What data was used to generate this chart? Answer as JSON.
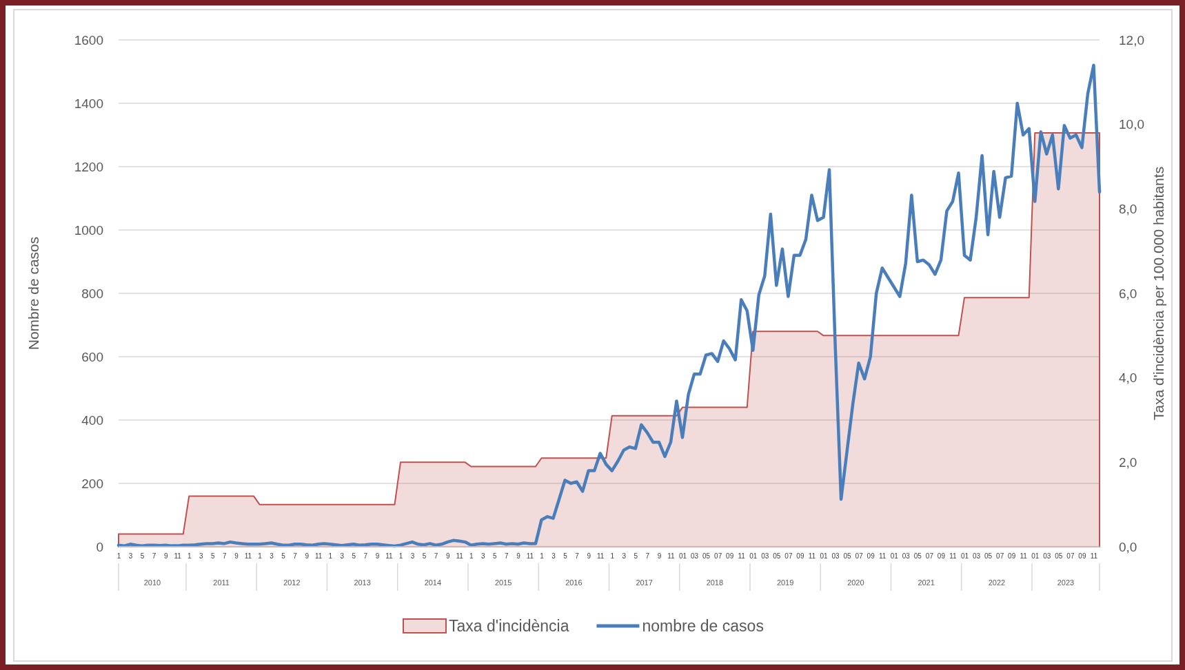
{
  "chart_data": {
    "type": "line",
    "xlabel": null,
    "ylabel": "Nombre de casos",
    "y2label": "Taxa d'incidència per 100.000 habitants",
    "categories": [
      "1",
      null,
      "3",
      null,
      "5",
      null,
      "7",
      null,
      "9",
      null,
      "11",
      null,
      "1",
      null,
      "3",
      null,
      "5",
      null,
      "7",
      null,
      "9",
      null,
      "11",
      null,
      "1",
      null,
      "3",
      null,
      "5",
      null,
      "7",
      null,
      "9",
      null,
      "11",
      null,
      "1",
      null,
      "3",
      null,
      "5",
      null,
      "7",
      null,
      "9",
      null,
      "11",
      null,
      "1",
      null,
      "3",
      null,
      "5",
      null,
      "7",
      null,
      "9",
      null,
      "11",
      null,
      "1",
      null,
      "3",
      null,
      "5",
      null,
      "7",
      null,
      "9",
      null,
      "11",
      null,
      "1",
      null,
      "3",
      null,
      "5",
      null,
      "7",
      null,
      "9",
      null,
      "11",
      null,
      "1",
      null,
      "3",
      null,
      "5",
      null,
      "7",
      null,
      "9",
      null,
      "11",
      null,
      "01",
      null,
      "03",
      null,
      "05",
      null,
      "07",
      null,
      "09",
      null,
      "11",
      null,
      "01",
      null,
      "03",
      null,
      "05",
      null,
      "07",
      null,
      "09",
      null,
      "11",
      null,
      "01",
      null,
      "03",
      null,
      "05",
      null,
      "07",
      null,
      "09",
      null,
      "11",
      null,
      "01",
      null,
      "03",
      null,
      "05",
      null,
      "07",
      null,
      "09",
      null,
      "11",
      null,
      "01",
      null,
      "03",
      null,
      "05",
      null,
      "07",
      null,
      "09",
      null,
      "11",
      null,
      "01",
      null,
      "03",
      null,
      "05",
      null,
      "07",
      null,
      "09",
      null,
      "11",
      null
    ],
    "annotations": [
      "2010",
      "2011",
      "2012",
      "2013",
      "2014",
      "2015",
      "2016",
      "2017",
      "2018",
      "2019",
      "2020",
      "2021",
      "2022",
      "2023"
    ],
    "series": [
      {
        "name": "Taxa d'incidència",
        "type": "area",
        "axis": "y2",
        "color": "#c0504d",
        "values": [
          0.3,
          0.3,
          0.3,
          0.3,
          0.3,
          0.3,
          0.3,
          0.3,
          0.3,
          0.3,
          0.3,
          0.3,
          1.2,
          1.2,
          1.2,
          1.2,
          1.2,
          1.2,
          1.2,
          1.2,
          1.2,
          1.2,
          1.2,
          1.2,
          1.0,
          1.0,
          1.0,
          1.0,
          1.0,
          1.0,
          1.0,
          1.0,
          1.0,
          1.0,
          1.0,
          1.0,
          1.0,
          1.0,
          1.0,
          1.0,
          1.0,
          1.0,
          1.0,
          1.0,
          1.0,
          1.0,
          1.0,
          1.0,
          2.0,
          2.0,
          2.0,
          2.0,
          2.0,
          2.0,
          2.0,
          2.0,
          2.0,
          2.0,
          2.0,
          2.0,
          1.9,
          1.9,
          1.9,
          1.9,
          1.9,
          1.9,
          1.9,
          1.9,
          1.9,
          1.9,
          1.9,
          1.9,
          2.1,
          2.1,
          2.1,
          2.1,
          2.1,
          2.1,
          2.1,
          2.1,
          2.1,
          2.1,
          2.1,
          2.1,
          3.1,
          3.1,
          3.1,
          3.1,
          3.1,
          3.1,
          3.1,
          3.1,
          3.1,
          3.1,
          3.1,
          3.1,
          3.3,
          3.3,
          3.3,
          3.3,
          3.3,
          3.3,
          3.3,
          3.3,
          3.3,
          3.3,
          3.3,
          3.3,
          5.1,
          5.1,
          5.1,
          5.1,
          5.1,
          5.1,
          5.1,
          5.1,
          5.1,
          5.1,
          5.1,
          5.1,
          5.0,
          5.0,
          5.0,
          5.0,
          5.0,
          5.0,
          5.0,
          5.0,
          5.0,
          5.0,
          5.0,
          5.0,
          5.0,
          5.0,
          5.0,
          5.0,
          5.0,
          5.0,
          5.0,
          5.0,
          5.0,
          5.0,
          5.0,
          5.0,
          5.9,
          5.9,
          5.9,
          5.9,
          5.9,
          5.9,
          5.9,
          5.9,
          5.9,
          5.9,
          5.9,
          5.9,
          9.8,
          9.8,
          9.8,
          9.8,
          9.8,
          9.8,
          9.8,
          9.8,
          9.8,
          9.8,
          9.8,
          9.8
        ]
      },
      {
        "name": "nombre de casos",
        "color": "#4a7ebb",
        "values": [
          5,
          3,
          8,
          5,
          3,
          5,
          5,
          4,
          5,
          3,
          3,
          5,
          5,
          6,
          8,
          10,
          10,
          12,
          10,
          15,
          12,
          10,
          8,
          8,
          8,
          10,
          12,
          8,
          5,
          5,
          8,
          8,
          6,
          5,
          8,
          10,
          8,
          6,
          4,
          6,
          8,
          5,
          6,
          8,
          8,
          6,
          4,
          2,
          5,
          10,
          15,
          8,
          6,
          10,
          5,
          8,
          15,
          20,
          18,
          15,
          5,
          8,
          10,
          8,
          10,
          12,
          8,
          10,
          8,
          12,
          10,
          10,
          85,
          95,
          90,
          150,
          210,
          200,
          205,
          175,
          240,
          240,
          295,
          260,
          240,
          270,
          305,
          315,
          310,
          385,
          360,
          330,
          330,
          285,
          330,
          460,
          345,
          480,
          545,
          545,
          605,
          610,
          585,
          650,
          625,
          590,
          780,
          745,
          620,
          795,
          855,
          1050,
          825,
          940,
          790,
          920,
          920,
          970,
          1110,
          1030,
          1040,
          1190,
          640,
          150,
          300,
          450,
          580,
          530,
          600,
          800,
          880,
          850,
          820,
          790,
          895,
          1110,
          900,
          905,
          890,
          860,
          905,
          1060,
          1090,
          1180,
          920,
          905,
          1040,
          1235,
          985,
          1185,
          1040,
          1165,
          1170,
          1400,
          1300,
          1320,
          1090,
          1310,
          1240,
          1300,
          1130,
          1330,
          1290,
          1300,
          1260,
          1430,
          1520,
          1120
        ]
      }
    ],
    "ylim": [
      0,
      1600
    ],
    "yticks": [
      0,
      200,
      400,
      600,
      800,
      1000,
      1200,
      1400,
      1600
    ],
    "y2lim": [
      0,
      12
    ],
    "y2ticks": [
      {
        "value": 0,
        "label": "0,0"
      },
      {
        "value": 2,
        "label": "2,0"
      },
      {
        "value": 4,
        "label": "4,0"
      },
      {
        "value": 6,
        "label": "6,0"
      },
      {
        "value": 8,
        "label": "8,0"
      },
      {
        "value": 10,
        "label": "10,0"
      },
      {
        "value": 12,
        "label": "12,0"
      }
    ],
    "grid": "y",
    "legend": "bottom",
    "marker": "none",
    "line_style": "solid"
  }
}
